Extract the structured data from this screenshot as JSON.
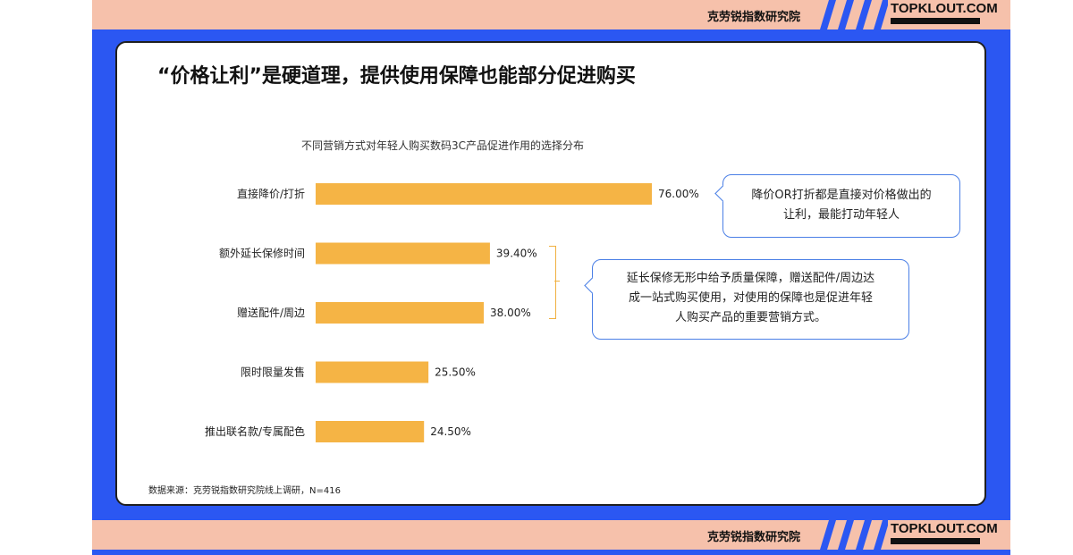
{
  "header": {
    "org_name": "克劳锐指数研究院",
    "logo_text": "TOPKLOUT.COM"
  },
  "footer": {
    "org_name": "克劳锐指数研究院",
    "logo_text": "TOPKLOUT.COM"
  },
  "page_title": "“价格让利”是硬道理，提供使用保障也能部分促进购买",
  "source_note": "数据来源：克劳锐指数研究院线上调研，N=416",
  "callouts": [
    {
      "text_line1": "降价OR打折都是直接对价格做出的",
      "text_line2": "让利，最能打动年轻人"
    },
    {
      "text_line1": "延长保修无形中给予质量保障，赠送配件/周边达",
      "text_line2": "成一站式购买使用，对使用的保障也是促进年轻",
      "text_line3": "人购买产品的重要营销方式。"
    }
  ],
  "colors": {
    "bar": "#f5b445",
    "accent": "#2b57f2",
    "band": "#f6c1ab",
    "callout_border": "#4a7fe6"
  },
  "chart_data": {
    "type": "bar",
    "orientation": "horizontal",
    "title": "不同营销方式对年轻人购买数码3C产品促进作用的选择分布",
    "categories": [
      "直接降价/打折",
      "额外延长保修时间",
      "赠送配件/周边",
      "限时限量发售",
      "推出联名款/专属配色"
    ],
    "values": [
      76.0,
      39.4,
      38.0,
      25.5,
      24.5
    ],
    "value_labels": [
      "76.00%",
      "39.40%",
      "38.00%",
      "25.50%",
      "24.50%"
    ],
    "xlim": [
      0,
      100
    ],
    "grid": false,
    "legend": "none"
  }
}
